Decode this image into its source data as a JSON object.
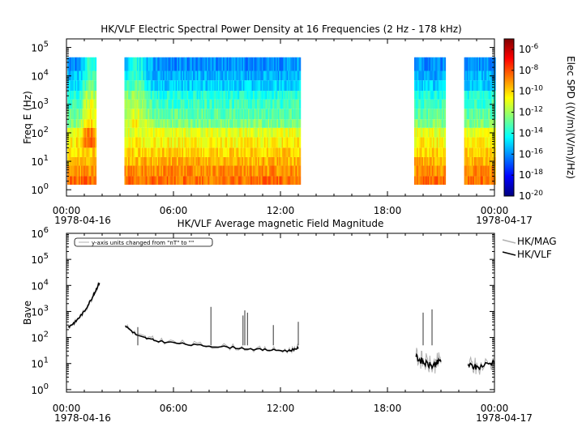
{
  "chart_data": [
    {
      "type": "heatmap",
      "title": "HK/VLF  Electric Spectral Power Density at 16 Frequencies (2 Hz - 178 kHz)",
      "ylabel": "Freq E (Hz)",
      "y_scale": "log",
      "ylim": [
        0.6,
        200000
      ],
      "y_ticks": [
        {
          "base": "10",
          "exp": "0"
        },
        {
          "base": "10",
          "exp": "1"
        },
        {
          "base": "10",
          "exp": "2"
        },
        {
          "base": "10",
          "exp": "3"
        },
        {
          "base": "10",
          "exp": "4"
        },
        {
          "base": "10",
          "exp": "5"
        }
      ],
      "x_ticks": [
        "00:00",
        "06:00",
        "12:00",
        "18:00",
        "00:00"
      ],
      "x_dates": [
        "1978-04-16",
        "1978-04-17"
      ],
      "xlim_hours": [
        0,
        24
      ],
      "colorbar": {
        "label": "Elec SPD ((V/m)(V/m)/Hz)",
        "scale": "log",
        "range_exp": [
          -20,
          -5
        ],
        "ticks": [
          {
            "base": "10",
            "exp": "-6"
          },
          {
            "base": "10",
            "exp": "-8"
          },
          {
            "base": "10",
            "exp": "-10"
          },
          {
            "base": "10",
            "exp": "-12"
          },
          {
            "base": "10",
            "exp": "-14"
          },
          {
            "base": "10",
            "exp": "-16"
          },
          {
            "base": "10",
            "exp": "-18"
          },
          {
            "base": "10",
            "exp": "-20"
          }
        ],
        "colors": [
          "#00007f",
          "#0000ff",
          "#007fff",
          "#00ffff",
          "#7fff7f",
          "#ffff00",
          "#ff7f00",
          "#ff0000",
          "#7f0000"
        ]
      },
      "frequency_bands_hz": [
        [
          1.5,
          3
        ],
        [
          3,
          7
        ],
        [
          7,
          14
        ],
        [
          14,
          30
        ],
        [
          30,
          70
        ],
        [
          70,
          150
        ],
        [
          150,
          300
        ],
        [
          300,
          700
        ],
        [
          700,
          1500
        ],
        [
          1500,
          3000
        ],
        [
          3000,
          7000
        ],
        [
          7000,
          15000
        ],
        [
          15000,
          45000
        ]
      ],
      "data_segments_hours": [
        [
          0.05,
          1.65
        ],
        [
          3.25,
          13.1
        ],
        [
          19.5,
          21.2
        ],
        [
          22.3,
          24.0
        ]
      ],
      "representative_log10_spd_by_band": [
        -8.5,
        -9.0,
        -9.5,
        -10.0,
        -10.5,
        -11.0,
        -12.5,
        -13.0,
        -13.5,
        -14.0,
        -15.0,
        -15.5,
        -16.0
      ]
    },
    {
      "type": "line",
      "title": "HK/VLF  Average magnetic Field Magnitude",
      "ylabel": "Bave",
      "y_scale": "log",
      "ylim": [
        0.8,
        1000000
      ],
      "y_ticks": [
        {
          "base": "10",
          "exp": "0"
        },
        {
          "base": "10",
          "exp": "1"
        },
        {
          "base": "10",
          "exp": "2"
        },
        {
          "base": "10",
          "exp": "3"
        },
        {
          "base": "10",
          "exp": "4"
        },
        {
          "base": "10",
          "exp": "5"
        },
        {
          "base": "10",
          "exp": "6"
        }
      ],
      "x_ticks": [
        "00:00",
        "06:00",
        "12:00",
        "18:00",
        "00:00"
      ],
      "x_dates": [
        "1978-04-16",
        "1978-04-17"
      ],
      "xlim_hours": [
        0,
        24
      ],
      "annotation": "y-axis units changed from \"nT\" to \"\"",
      "legend": {
        "placement": "right-outside-top",
        "entries": [
          "HK/MAG",
          "HK/VLF"
        ]
      },
      "series": [
        {
          "name": "HK/MAG",
          "color": "#b0b0b0",
          "points": [
            [
              0.1,
              250
            ],
            [
              0.5,
              400
            ],
            [
              1.0,
              1000
            ],
            [
              1.5,
              4000
            ],
            [
              1.85,
              13000
            ],
            [
              3.3,
              300
            ],
            [
              4.0,
              120
            ],
            [
              5.0,
              80
            ],
            [
              7.0,
              55
            ],
            [
              9.0,
              45
            ],
            [
              11.0,
              35
            ],
            [
              12.5,
              32
            ],
            [
              13.0,
              45
            ],
            [
              19.6,
              20
            ],
            [
              20.0,
              12
            ],
            [
              20.5,
              8
            ],
            [
              21.0,
              14
            ],
            [
              22.5,
              10
            ],
            [
              23.0,
              7
            ],
            [
              24.0,
              12
            ]
          ]
        },
        {
          "name": "HK/VLF",
          "color": "#000000",
          "points": [
            [
              0.1,
              250
            ],
            [
              0.5,
              400
            ],
            [
              1.0,
              1000
            ],
            [
              1.5,
              4000
            ],
            [
              1.85,
              13000
            ],
            [
              3.3,
              280
            ],
            [
              4.0,
              115
            ],
            [
              5.0,
              75
            ],
            [
              7.0,
              52
            ],
            [
              9.0,
              43
            ],
            [
              11.0,
              34
            ],
            [
              12.5,
              31
            ],
            [
              13.0,
              40
            ],
            [
              19.6,
              18
            ],
            [
              20.0,
              11
            ],
            [
              20.5,
              8
            ],
            [
              21.0,
              13
            ],
            [
              22.5,
              9
            ],
            [
              23.0,
              7
            ],
            [
              24.0,
              12
            ]
          ]
        }
      ],
      "spikes": [
        [
          4.0,
          250
        ],
        [
          8.1,
          1500
        ],
        [
          10.0,
          1100
        ],
        [
          10.15,
          900
        ],
        [
          9.9,
          700
        ],
        [
          11.6,
          300
        ],
        [
          13.0,
          400
        ],
        [
          20.5,
          1200
        ],
        [
          20.0,
          900
        ]
      ]
    }
  ]
}
